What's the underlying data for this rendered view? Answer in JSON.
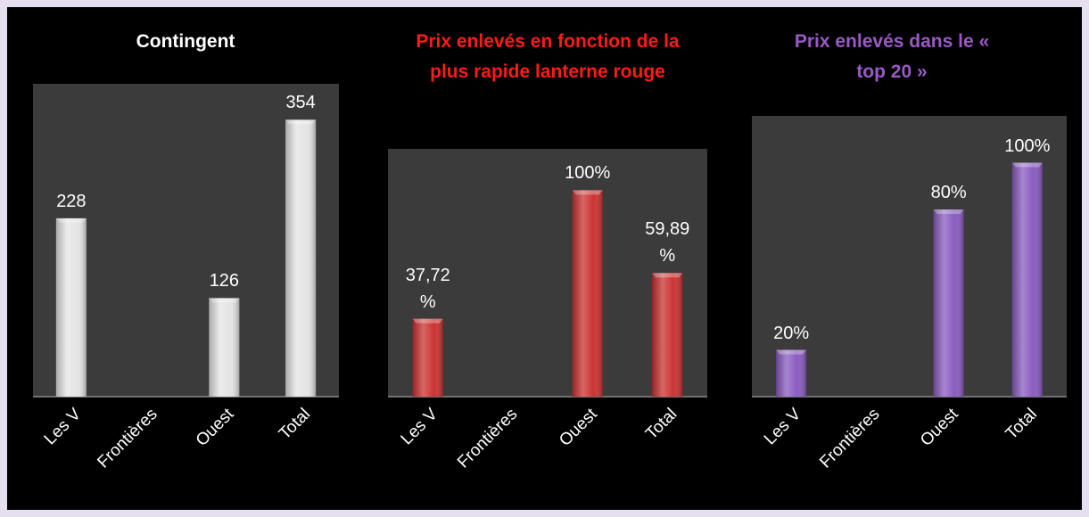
{
  "chart_data": [
    {
      "type": "bar",
      "title": "Contingent",
      "title_color": "#ffffff",
      "categories": [
        "Les V",
        "Frontières",
        "Ouest",
        "Total"
      ],
      "values": [
        228,
        null,
        126,
        354
      ],
      "value_labels": [
        "228",
        null,
        "126",
        "354"
      ],
      "color": "#e4e4e4",
      "ylim": [
        0,
        400
      ]
    },
    {
      "type": "bar",
      "title": "Prix enlevés en fonction de la plus rapide lanterne rouge",
      "title_color": "#ff1a1a",
      "categories": [
        "Les V",
        "Frontières",
        "Ouest",
        "Total"
      ],
      "values": [
        37.72,
        null,
        100,
        59.89
      ],
      "value_labels": [
        "37,72 %",
        null,
        "100%",
        "59,89 %"
      ],
      "color": "#cc3333",
      "ylim": [
        0,
        120
      ]
    },
    {
      "type": "bar",
      "title": "Prix enlevés dans le « top 20 »",
      "title_color": "#9b59c6",
      "categories": [
        "Les V",
        "Frontières",
        "Ouest",
        "Total"
      ],
      "values": [
        20,
        null,
        80,
        100
      ],
      "value_labels": [
        "20%",
        null,
        "80%",
        "100%"
      ],
      "color": "#8a5cc0",
      "ylim": [
        0,
        120
      ]
    }
  ]
}
